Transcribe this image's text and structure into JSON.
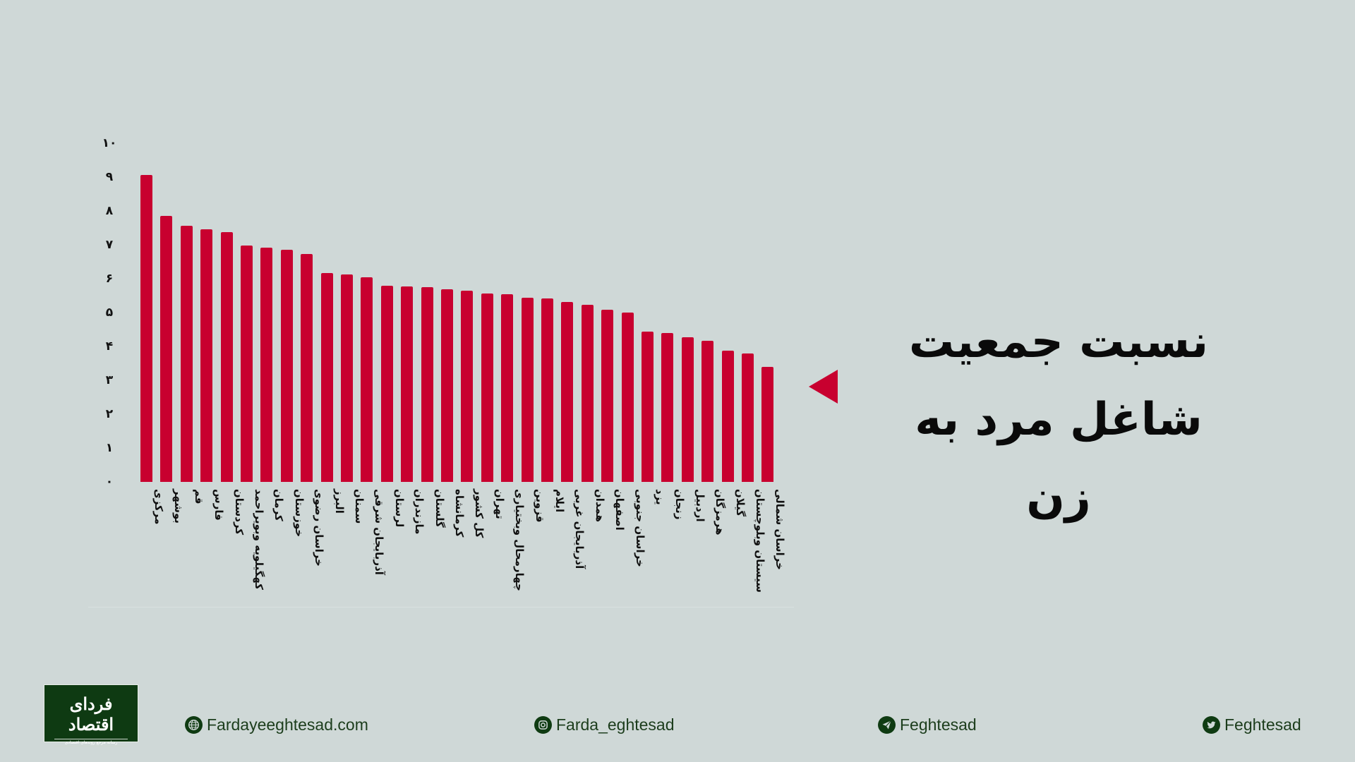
{
  "title": {
    "line1": "نسبت جمعیت",
    "line2": "شاغل مرد به زن"
  },
  "colors": {
    "background": "#cfd8d7",
    "bar": "#c8002f",
    "brand_green": "#0f3b12",
    "text": "#0a0a0a"
  },
  "logo": {
    "name": "فردای اقتصاد",
    "tagline": "رسانه مرجع روندهای اقتصادی"
  },
  "footer": {
    "website": {
      "icon": "globe-icon",
      "label": "Fardayeeghtesad.com"
    },
    "instagram": {
      "icon": "instagram-icon",
      "label": "Farda_eghtesad"
    },
    "telegram": {
      "icon": "telegram-icon",
      "label": "Feghtesad"
    },
    "twitter": {
      "icon": "twitter-icon",
      "label": "Feghtesad"
    }
  },
  "y_ticks": [
    "۰",
    "۱",
    "۲",
    "۳",
    "۴",
    "۵",
    "۶",
    "۷",
    "۸",
    "۹",
    "۱۰"
  ],
  "chart_data": {
    "type": "bar",
    "title": "نسبت جمعیت شاغل مرد به زن",
    "xlabel": "",
    "ylabel": "",
    "ylim": [
      0,
      10
    ],
    "grid": false,
    "legend": null,
    "categories": [
      "مرکزی",
      "بوشهر",
      "قم",
      "فارس",
      "کردستان",
      "کهگیلویه وبویراحمد",
      "کرمان",
      "خوزستان",
      "خراسان رضوی",
      "البرز",
      "سمنان",
      "آذربایجان شرقی",
      "لرستان",
      "مازندران",
      "گلستان",
      "کرمانشاه",
      "کل کشور",
      "تهران",
      "چهارمحال وبختیاری",
      "قزوین",
      "ایلام",
      "آذربایجان غربی",
      "همدان",
      "اصفهان",
      "خراسان جنوبی",
      "یزد",
      "زنجان",
      "اردبیل",
      "هرمزگان",
      "گیلان",
      "سیستان وبلوچستان",
      "خراسان شمالی"
    ],
    "values": [
      9.07,
      7.85,
      7.56,
      7.46,
      7.38,
      6.98,
      6.92,
      6.85,
      6.73,
      6.17,
      6.13,
      6.04,
      5.79,
      5.77,
      5.75,
      5.69,
      5.65,
      5.56,
      5.54,
      5.44,
      5.42,
      5.31,
      5.23,
      5.08,
      5.0,
      4.44,
      4.4,
      4.27,
      4.17,
      3.88,
      3.79,
      3.4
    ]
  }
}
